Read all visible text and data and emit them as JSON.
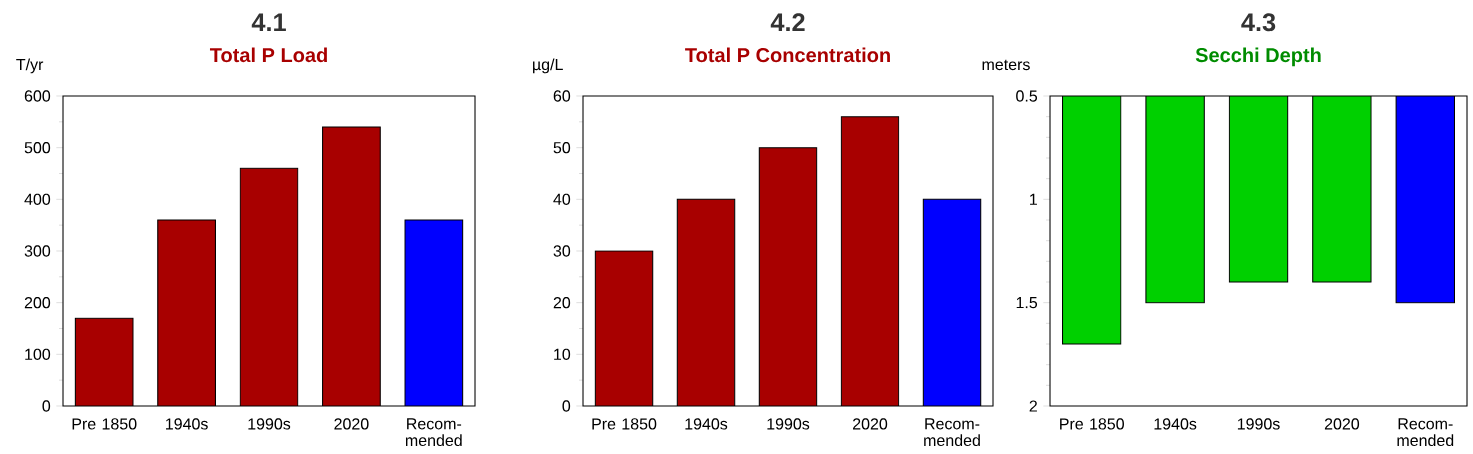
{
  "chart_data": [
    {
      "type": "bar",
      "title": "4.1",
      "subtitle": "Total P Load",
      "ylabel": "T/yr",
      "categories": [
        "Pre 1850",
        "1940s",
        "1990s",
        "2020",
        "Recom- mended"
      ],
      "values": [
        170,
        360,
        460,
        540,
        360
      ],
      "colors": [
        "#a80000",
        "#a80000",
        "#a80000",
        "#a80000",
        "#0000ff"
      ],
      "ylim": [
        0,
        600
      ],
      "yticks": [
        0,
        100,
        200,
        300,
        400,
        500,
        600
      ]
    },
    {
      "type": "bar",
      "title": "4.2",
      "subtitle": "Total P Concentration",
      "ylabel": "µg/L",
      "categories": [
        "Pre 1850",
        "1940s",
        "1990s",
        "2020",
        "Recom- mended"
      ],
      "values": [
        30,
        40,
        50,
        56,
        40
      ],
      "colors": [
        "#a80000",
        "#a80000",
        "#a80000",
        "#a80000",
        "#0000ff"
      ],
      "ylim": [
        0,
        60
      ],
      "yticks": [
        0,
        10,
        20,
        30,
        40,
        50,
        60
      ]
    },
    {
      "type": "bar",
      "title": "4.3",
      "subtitle": "Secchi Depth",
      "ylabel": "meters",
      "categories": [
        "Pre 1850",
        "1940s",
        "1990s",
        "2020",
        "Recom- mended"
      ],
      "values": [
        1.7,
        1.5,
        1.4,
        1.4,
        1.5
      ],
      "colors": [
        "#00d000",
        "#00d000",
        "#00d000",
        "#00d000",
        "#0000ff"
      ],
      "ylim": [
        2,
        0.5
      ],
      "yticks": [
        0.5,
        1,
        1.5,
        2
      ]
    }
  ]
}
